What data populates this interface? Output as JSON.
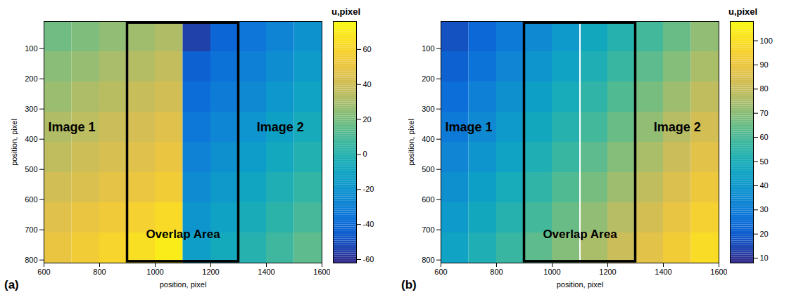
{
  "chart_data": [
    {
      "type": "heatmap",
      "panel_label": "(a)",
      "xlabel": "position, pixel",
      "ylabel": "position, pixel",
      "xlim": [
        600,
        1600
      ],
      "ylim": [
        10,
        810
      ],
      "xticks": [
        600,
        800,
        1000,
        1200,
        1400,
        1600
      ],
      "yticks": [
        100,
        200,
        300,
        400,
        500,
        600,
        700,
        800
      ],
      "x_edges": [
        600,
        700,
        800,
        900,
        1000,
        1100,
        1200,
        1300,
        1400,
        1500,
        1600
      ],
      "y_edges": [
        10,
        110,
        210,
        310,
        410,
        510,
        610,
        710,
        810
      ],
      "cells": [
        [
          18,
          21,
          25,
          28,
          32,
          -55,
          -42,
          -35,
          -28,
          -21
        ],
        [
          23,
          26,
          30,
          33,
          37,
          -44,
          -37,
          -30,
          -23,
          -16
        ],
        [
          27,
          31,
          34,
          38,
          41,
          -39,
          -32,
          -25,
          -18,
          -11
        ],
        [
          32,
          35,
          39,
          42,
          46,
          -34,
          -27,
          -20,
          -13,
          -6
        ],
        [
          36,
          40,
          43,
          46,
          50,
          -29,
          -22,
          -15,
          -8,
          -1
        ],
        [
          41,
          44,
          48,
          51,
          55,
          -24,
          -17,
          -10,
          -3,
          4
        ],
        [
          46,
          50,
          54,
          58,
          63,
          -19,
          -12,
          -5,
          2,
          9
        ],
        [
          50,
          55,
          60,
          65,
          70,
          -14,
          -7,
          0,
          7,
          14
        ]
      ],
      "colorbar": {
        "label": "u,pixel",
        "range": [
          -62,
          76
        ],
        "ticks": [
          -60,
          -40,
          -20,
          0,
          20,
          40,
          60
        ]
      },
      "overlap": {
        "x": [
          900,
          1300
        ],
        "y": [
          15,
          805
        ],
        "label": "Overlap Area",
        "label_x": 1100,
        "label_y": 715
      },
      "annotations": [
        {
          "text": "Image 1",
          "x": 700,
          "y": 360
        },
        {
          "text": "Image 2",
          "x": 1450,
          "y": 360
        }
      ]
    },
    {
      "type": "heatmap",
      "panel_label": "(b)",
      "xlabel": "position, pixel",
      "ylabel": "position, pixel",
      "xlim": [
        600,
        1600
      ],
      "ylim": [
        10,
        810
      ],
      "xticks": [
        600,
        800,
        1000,
        1200,
        1400,
        1600
      ],
      "yticks": [
        100,
        200,
        300,
        400,
        500,
        600,
        700,
        800
      ],
      "x_edges": [
        600,
        700,
        800,
        900,
        1000,
        1100,
        1200,
        1300,
        1400,
        1500,
        1600
      ],
      "y_edges": [
        10,
        110,
        210,
        310,
        410,
        510,
        610,
        710,
        810
      ],
      "cells": [
        [
          17,
          23,
          29,
          35,
          41,
          47,
          53,
          59,
          65,
          71
        ],
        [
          21,
          27,
          33,
          39,
          45,
          51,
          57,
          63,
          69,
          75
        ],
        [
          25,
          31,
          37,
          43,
          49,
          55,
          61,
          67,
          73,
          79
        ],
        [
          29,
          35,
          41,
          47,
          53,
          59,
          65,
          71,
          77,
          83
        ],
        [
          33,
          39,
          45,
          51,
          57,
          63,
          69,
          75,
          81,
          87
        ],
        [
          37,
          43,
          49,
          55,
          61,
          67,
          73,
          79,
          85,
          91
        ],
        [
          41,
          47,
          53,
          59,
          65,
          71,
          77,
          83,
          89,
          95
        ],
        [
          45,
          51,
          57,
          63,
          69,
          75,
          81,
          87,
          93,
          99
        ]
      ],
      "colorbar": {
        "label": "u,pixel",
        "range": [
          8,
          108
        ],
        "ticks": [
          10,
          20,
          30,
          40,
          50,
          60,
          70,
          80,
          90,
          100
        ]
      },
      "seam_x": 1100,
      "overlap": {
        "x": [
          900,
          1300
        ],
        "y": [
          15,
          805
        ],
        "label": "Overlap Area",
        "label_x": 1100,
        "label_y": 715
      },
      "annotations": [
        {
          "text": "Image 1",
          "x": 700,
          "y": 360
        },
        {
          "text": "Image 2",
          "x": 1450,
          "y": 360
        }
      ]
    }
  ]
}
